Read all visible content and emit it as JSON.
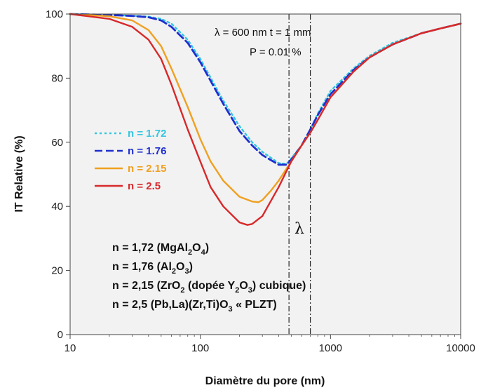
{
  "chart_data": {
    "type": "line",
    "xlabel": "Diamètre du pore (nm)",
    "ylabel": "IT Relative (%)",
    "xscale": "log",
    "xlim": [
      10,
      10000
    ],
    "ylim": [
      0,
      100
    ],
    "xticks": [
      10,
      100,
      1000,
      10000
    ],
    "yticks": [
      0,
      20,
      40,
      60,
      80,
      100
    ],
    "x_tick_labels": [
      "10",
      "100",
      "1000",
      "10000"
    ],
    "y_tick_labels": [
      "0",
      "20",
      "40",
      "60",
      "80",
      "100"
    ],
    "grid": false,
    "legend_placement": "left",
    "annotations": {
      "conditions_line1": "λ = 600 nm  t = 1 mm",
      "conditions_line2": "P = 0.01 %",
      "lambda_symbol": "λ",
      "lambda_band": [
        480,
        700
      ]
    },
    "series": [
      {
        "name": "n = 1.72",
        "color": "#33c6e0",
        "style": "dotted",
        "x": [
          10,
          20,
          30,
          40,
          50,
          60,
          80,
          100,
          150,
          200,
          250,
          300,
          400,
          460,
          500,
          600,
          700,
          800,
          1000,
          1500,
          2000,
          3000,
          5000,
          7000,
          10000
        ],
        "y": [
          100,
          99.7,
          99.5,
          99.2,
          98.5,
          97,
          92,
          86,
          73,
          65,
          60,
          57,
          53.5,
          53.2,
          55,
          59,
          64,
          69,
          76,
          83,
          87,
          91,
          94,
          95.5,
          97
        ]
      },
      {
        "name": "n = 1.76",
        "color": "#1f2fcf",
        "style": "dashed",
        "x": [
          10,
          20,
          30,
          40,
          50,
          60,
          80,
          100,
          150,
          200,
          250,
          300,
          400,
          460,
          500,
          600,
          700,
          800,
          1000,
          1500,
          2000,
          3000,
          5000,
          7000,
          10000
        ],
        "y": [
          100,
          99.7,
          99.4,
          99,
          98,
          96,
          91,
          85,
          72,
          63.5,
          59,
          56,
          53,
          53,
          54.5,
          59,
          64,
          68.5,
          75,
          82.5,
          86.5,
          90.5,
          94,
          95.5,
          97
        ]
      },
      {
        "name": "n = 2.15",
        "color": "#f0a020",
        "style": "solid",
        "x": [
          10,
          20,
          30,
          40,
          50,
          60,
          80,
          100,
          120,
          150,
          200,
          250,
          280,
          300,
          350,
          400,
          500,
          600,
          700,
          800,
          1000,
          1500,
          2000,
          3000,
          5000,
          7000,
          10000
        ],
        "y": [
          100,
          99.3,
          98,
          95,
          90,
          83,
          71,
          61,
          54,
          48,
          43,
          41.5,
          41.3,
          42,
          45,
          48,
          54,
          59,
          63,
          67,
          74,
          82,
          86.5,
          90.5,
          94,
          95.5,
          97
        ]
      },
      {
        "name": "n = 2.5",
        "color": "#d8282a",
        "style": "solid",
        "x": [
          10,
          20,
          30,
          40,
          50,
          60,
          80,
          100,
          120,
          150,
          200,
          230,
          250,
          300,
          400,
          500,
          600,
          700,
          800,
          1000,
          1500,
          2000,
          3000,
          5000,
          7000,
          10000
        ],
        "y": [
          100,
          98.5,
          96,
          92,
          86,
          78,
          64,
          54,
          46,
          40,
          35,
          34.2,
          34.5,
          37,
          46,
          54,
          59,
          63,
          67,
          74,
          82,
          86.5,
          90.5,
          94,
          95.5,
          97
        ]
      }
    ],
    "materials": [
      {
        "n": "n = 1,72",
        "formula_parts": [
          [
            "(MgAl",
            false
          ],
          [
            "2",
            true
          ],
          [
            "O",
            false
          ],
          [
            "4",
            true
          ],
          [
            ")",
            false
          ]
        ]
      },
      {
        "n": "n = 1,76",
        "formula_parts": [
          [
            "(Al",
            false
          ],
          [
            "2",
            true
          ],
          [
            "O",
            false
          ],
          [
            "3",
            true
          ],
          [
            ")",
            false
          ]
        ]
      },
      {
        "n": "n = 2,15",
        "formula_parts": [
          [
            "(ZrO",
            false
          ],
          [
            "2",
            true
          ],
          [
            " (dopée Y",
            false
          ],
          [
            "2",
            true
          ],
          [
            "O",
            false
          ],
          [
            "3",
            true
          ],
          [
            ") cubique)",
            false
          ]
        ]
      },
      {
        "n": "n = 2,5",
        "formula_parts": [
          [
            "(Pb,La)(Zr,Ti)O",
            false
          ],
          [
            "3",
            true
          ],
          [
            " « PLZT)",
            false
          ]
        ]
      }
    ]
  }
}
